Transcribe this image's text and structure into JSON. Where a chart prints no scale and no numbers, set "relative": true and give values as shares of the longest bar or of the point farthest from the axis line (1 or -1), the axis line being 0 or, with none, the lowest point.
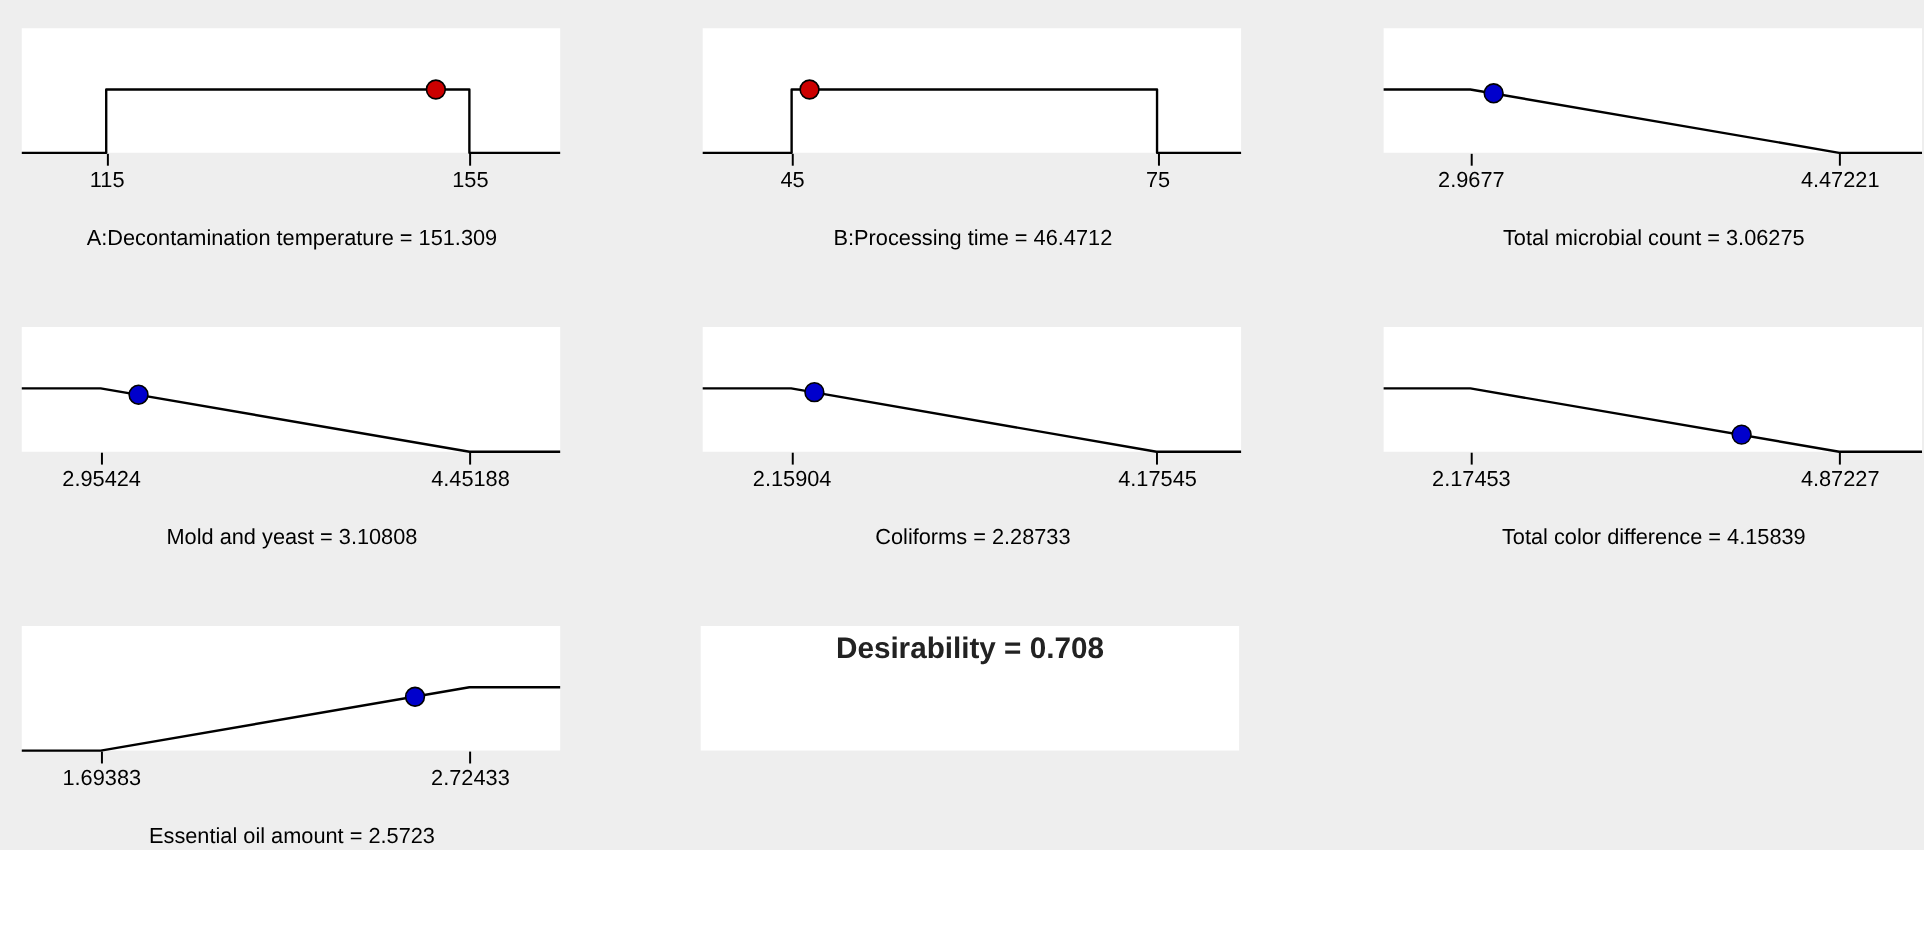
{
  "chart_data": [
    {
      "type": "line",
      "relative": true,
      "xlabel": "A:Decontamination temperature = 151.309",
      "xlim": [
        105.7,
        165
      ],
      "xticks": [
        115,
        155
      ],
      "tick_labels": "x",
      "series": [
        {
          "type": "line",
          "color": "#000000",
          "line_style": "solid",
          "x": [
            105.7,
            115,
            115,
            155,
            155,
            165
          ],
          "values": [
            0,
            0,
            1,
            1,
            0,
            0
          ]
        },
        {
          "type": "scatter",
          "color": "#cc0000",
          "marker": "circle",
          "x": [
            151.309
          ],
          "values": [
            1
          ]
        }
      ]
    },
    {
      "type": "line",
      "relative": true,
      "xlabel": "B:Processing time  = 46.4712",
      "xlim": [
        37.7,
        81.9
      ],
      "xticks": [
        45,
        75
      ],
      "tick_labels": "x",
      "series": [
        {
          "type": "line",
          "color": "#000000",
          "line_style": "solid",
          "x": [
            37.7,
            45,
            45,
            75,
            75,
            81.9
          ],
          "values": [
            0,
            0,
            1,
            1,
            0,
            0
          ]
        },
        {
          "type": "scatter",
          "color": "#cc0000",
          "marker": "circle",
          "x": [
            46.4712
          ],
          "values": [
            1
          ]
        }
      ]
    },
    {
      "type": "line",
      "relative": true,
      "xlabel": "Total microbial count = 3.06275",
      "xlim": [
        2.614,
        4.81
      ],
      "xticks": [
        2.9677,
        4.47221
      ],
      "tick_labels": "x",
      "series": [
        {
          "type": "line",
          "color": "#000000",
          "line_style": "solid",
          "x": [
            2.614,
            2.9677,
            4.47221,
            4.81
          ],
          "values": [
            1,
            1,
            0,
            0
          ]
        },
        {
          "type": "scatter",
          "color": "#0000cc",
          "marker": "circle",
          "x": [
            3.06275
          ],
          "values": [
            0.94
          ]
        }
      ]
    },
    {
      "type": "line",
      "relative": true,
      "xlabel": "Mold and yeast = 3.10808",
      "xlim": [
        2.634,
        4.82
      ],
      "xticks": [
        2.95424,
        4.45188
      ],
      "tick_labels": "x",
      "series": [
        {
          "type": "line",
          "color": "#000000",
          "line_style": "solid",
          "x": [
            2.634,
            2.95424,
            4.45188,
            4.82
          ],
          "values": [
            1,
            1,
            0,
            0
          ]
        },
        {
          "type": "scatter",
          "color": "#0000cc",
          "marker": "circle",
          "x": [
            3.10808
          ],
          "values": [
            0.9
          ]
        }
      ]
    },
    {
      "type": "line",
      "relative": true,
      "xlabel": "Coliforms = 2.28733",
      "xlim": [
        1.671,
        4.642
      ],
      "xticks": [
        2.15904,
        4.17545
      ],
      "tick_labels": "x",
      "series": [
        {
          "type": "line",
          "color": "#000000",
          "line_style": "solid",
          "x": [
            1.671,
            2.15904,
            4.17545,
            4.642
          ],
          "values": [
            1,
            1,
            0,
            0
          ]
        },
        {
          "type": "scatter",
          "color": "#0000cc",
          "marker": "circle",
          "x": [
            2.28733
          ],
          "values": [
            0.94
          ]
        }
      ]
    },
    {
      "type": "line",
      "relative": true,
      "xlabel": "Total color difference  = 4.15839",
      "xlim": [
        1.54,
        5.478
      ],
      "xticks": [
        2.17453,
        4.87227
      ],
      "tick_labels": "x",
      "series": [
        {
          "type": "line",
          "color": "#000000",
          "line_style": "solid",
          "x": [
            1.54,
            2.17453,
            4.87227,
            5.478
          ],
          "values": [
            1,
            1,
            0,
            0
          ]
        },
        {
          "type": "scatter",
          "color": "#0000cc",
          "marker": "circle",
          "x": [
            4.15839
          ],
          "values": [
            0.27
          ]
        }
      ]
    },
    {
      "type": "line",
      "relative": true,
      "xlabel": "Essential oil amount  = 2.5723",
      "xlim": [
        1.473,
        2.978
      ],
      "xticks": [
        1.69383,
        2.72433
      ],
      "tick_labels": "x",
      "series": [
        {
          "type": "line",
          "color": "#000000",
          "line_style": "solid",
          "x": [
            1.473,
            1.69383,
            2.72433,
            2.978
          ],
          "values": [
            0,
            0,
            1,
            1
          ]
        },
        {
          "type": "scatter",
          "color": "#0000cc",
          "marker": "circle",
          "x": [
            2.5723
          ],
          "values": [
            0.85
          ]
        }
      ]
    },
    {
      "type": "other",
      "title": "Desirability = 0.708"
    }
  ]
}
